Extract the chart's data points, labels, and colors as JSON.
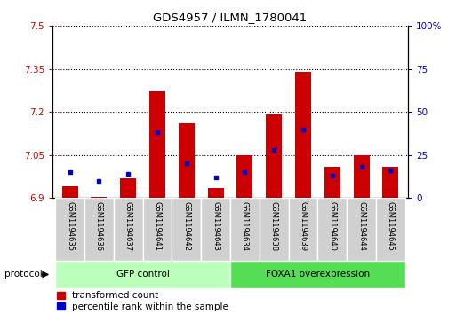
{
  "title": "GDS4957 / ILMN_1780041",
  "samples": [
    "GSM1194635",
    "GSM1194636",
    "GSM1194637",
    "GSM1194641",
    "GSM1194642",
    "GSM1194643",
    "GSM1194634",
    "GSM1194638",
    "GSM1194639",
    "GSM1194640",
    "GSM1194644",
    "GSM1194645"
  ],
  "red_values": [
    6.94,
    6.905,
    6.97,
    7.27,
    7.16,
    6.935,
    7.05,
    7.19,
    7.34,
    7.01,
    7.05,
    7.01
  ],
  "blue_values_pct": [
    15,
    10,
    14,
    38,
    20,
    12,
    15,
    28,
    40,
    13,
    18,
    16
  ],
  "ymin": 6.9,
  "ymax": 7.5,
  "y_ticks": [
    6.9,
    7.05,
    7.2,
    7.35,
    7.5
  ],
  "y_right_ticks": [
    0,
    25,
    50,
    75,
    100
  ],
  "bar_color": "#cc0000",
  "blue_color": "#0000cc",
  "group1_label": "GFP control",
  "group2_label": "FOXA1 overexpression",
  "group1_color": "#bbffbb",
  "group2_color": "#55dd55",
  "legend_red": "transformed count",
  "legend_blue": "percentile rank within the sample",
  "protocol_label": "protocol",
  "bar_width": 0.55,
  "n_group1": 6,
  "n_group2": 6
}
